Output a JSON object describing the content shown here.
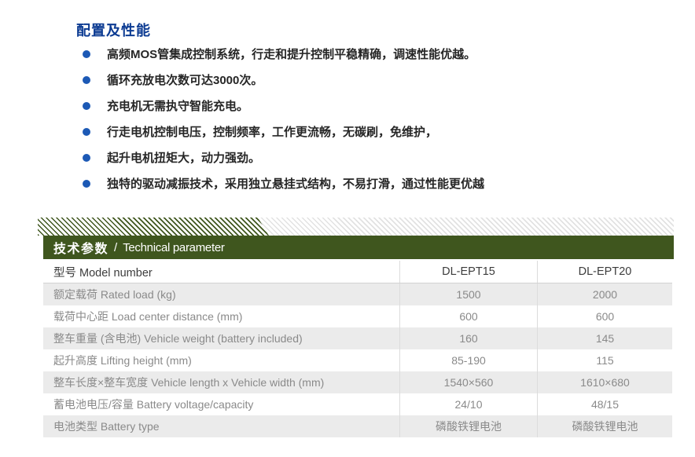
{
  "colors": {
    "title_blue": "#0C3B92",
    "bullet_blue": "#1C59B5",
    "bar_green": "#3F561E",
    "row_gray": "#EBEBEB"
  },
  "config": {
    "title": "配置及性能",
    "features": [
      "高频MOS管集成控制系统，行走和提升控制平稳精确，调速性能优越。",
      "循环充放电次数可达3000次。",
      "充电机无需执守智能充电。",
      "行走电机控制电压，控制频率，工作更流畅，无碳刷，免维护，",
      "起升电机扭矩大，动力强劲。",
      "独特的驱动减振技术，采用独立悬挂式结构，不易打滑，通过性能更优越"
    ]
  },
  "params": {
    "title_cn": "技术参数",
    "separator": "/",
    "title_en": "Technical parameter",
    "table": {
      "header": {
        "model_label": "型号 Model number",
        "col_ept15": "DL-EPT15",
        "col_ept20": "DL-EPT20"
      },
      "rows": [
        {
          "label": "额定载荷 Rated load (kg)",
          "ept15": "1500",
          "ept20": "2000"
        },
        {
          "label": "载荷中心距 Load center distance (mm)",
          "ept15": "600",
          "ept20": "600"
        },
        {
          "label": "整车重量 (含电池) Vehicle weight (battery included)",
          "ept15": "160",
          "ept20": "145"
        },
        {
          "label": "起升高度 Lifting height (mm)",
          "ept15": "85-190",
          "ept20": "115"
        },
        {
          "label": "整车长度×整车宽度 Vehicle length x Vehicle width (mm)",
          "ept15": "1540×560",
          "ept20": "1610×680"
        },
        {
          "label": "蓄电池电压/容量 Battery voltage/capacity",
          "ept15": "24/10",
          "ept20": "48/15"
        },
        {
          "label": "电池类型 Battery type",
          "ept15": "磷酸铁锂电池",
          "ept20": "磷酸铁锂电池"
        }
      ]
    }
  }
}
